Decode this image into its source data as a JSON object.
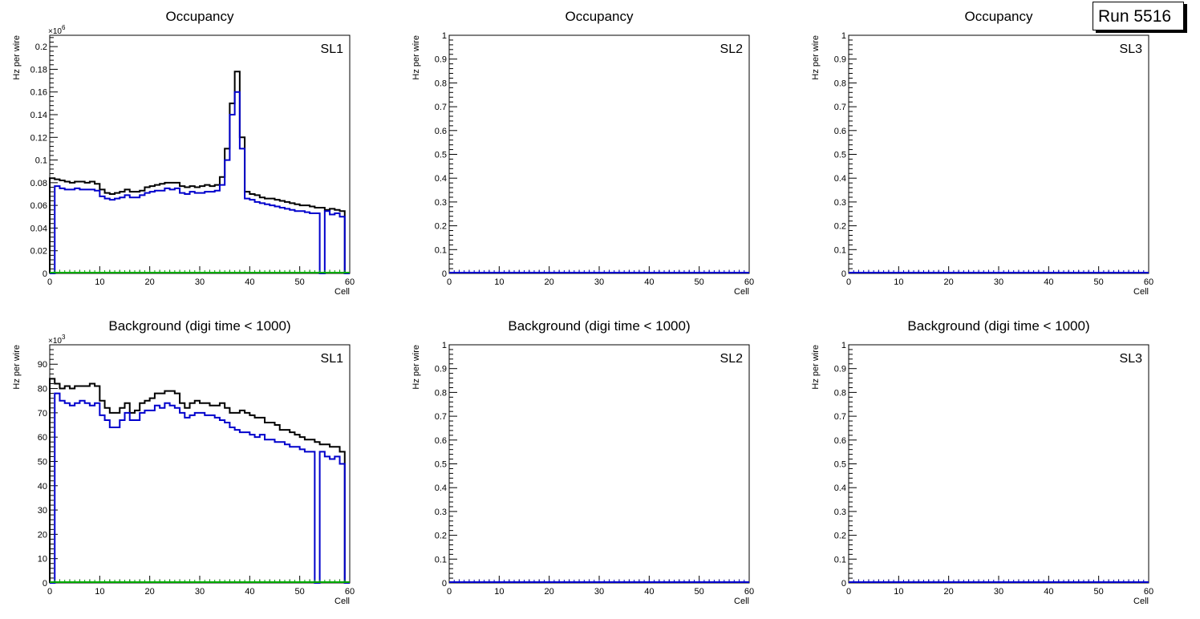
{
  "run_label": "Run 5516",
  "colors": {
    "total": "#000000",
    "stacked": "#0000cc",
    "zero": "#00aa00",
    "frame": "#000000"
  },
  "chart_data": [
    {
      "type": "line",
      "title": "Occupancy",
      "label": "SL1",
      "xlabel": "Cell",
      "ylabel": "Hz per wire",
      "multiplier": "×10^6",
      "xlim": [
        0,
        60
      ],
      "ylim": [
        0,
        0.21
      ],
      "xticks": [
        0,
        10,
        20,
        30,
        40,
        50,
        60
      ],
      "yticks": [
        0,
        0.02,
        0.04,
        0.06,
        0.08,
        0.1,
        0.12,
        0.14,
        0.16,
        0.18,
        0.2
      ],
      "series": [
        {
          "values": [
            0.084,
            0.083,
            0.082,
            0.081,
            0.08,
            0.081,
            0.081,
            0.08,
            0.081,
            0.079,
            0.074,
            0.071,
            0.07,
            0.071,
            0.072,
            0.074,
            0.072,
            0.072,
            0.073,
            0.076,
            0.077,
            0.078,
            0.079,
            0.08,
            0.08,
            0.08,
            0.077,
            0.076,
            0.077,
            0.076,
            0.077,
            0.078,
            0.077,
            0.078,
            0.085,
            0.11,
            0.15,
            0.178,
            0.12,
            0.072,
            0.07,
            0.069,
            0.067,
            0.066,
            0.066,
            0.065,
            0.064,
            0.063,
            0.062,
            0.061,
            0.06,
            0.06,
            0.059,
            0.058,
            0.058,
            0.056,
            0.057,
            0.056,
            0.055,
            0.0
          ]
        },
        {
          "values": [
            0.0,
            0.077,
            0.075,
            0.074,
            0.074,
            0.075,
            0.074,
            0.074,
            0.074,
            0.073,
            0.068,
            0.066,
            0.065,
            0.066,
            0.067,
            0.069,
            0.067,
            0.067,
            0.069,
            0.071,
            0.072,
            0.073,
            0.073,
            0.075,
            0.074,
            0.075,
            0.071,
            0.07,
            0.072,
            0.071,
            0.071,
            0.072,
            0.072,
            0.073,
            0.078,
            0.1,
            0.14,
            0.16,
            0.11,
            0.066,
            0.065,
            0.063,
            0.062,
            0.061,
            0.06,
            0.059,
            0.058,
            0.057,
            0.056,
            0.055,
            0.055,
            0.054,
            0.053,
            0.053,
            0.0,
            0.055,
            0.052,
            0.053,
            0.05,
            0.0
          ]
        }
      ]
    },
    {
      "type": "line",
      "title": "Occupancy",
      "label": "SL2",
      "xlabel": "Cell",
      "ylabel": "Hz per wire",
      "xlim": [
        0,
        60
      ],
      "ylim": [
        0,
        1
      ],
      "xticks": [
        0,
        10,
        20,
        30,
        40,
        50,
        60
      ],
      "yticks": [
        0,
        0.1,
        0.2,
        0.3,
        0.4,
        0.5,
        0.6,
        0.7,
        0.8,
        0.9,
        1
      ],
      "series": []
    },
    {
      "type": "line",
      "title": "Occupancy",
      "label": "SL3",
      "xlabel": "Cell",
      "ylabel": "Hz per wire",
      "xlim": [
        0,
        60
      ],
      "ylim": [
        0,
        1
      ],
      "xticks": [
        0,
        10,
        20,
        30,
        40,
        50,
        60
      ],
      "yticks": [
        0,
        0.1,
        0.2,
        0.3,
        0.4,
        0.5,
        0.6,
        0.7,
        0.8,
        0.9,
        1
      ],
      "series": []
    },
    {
      "type": "line",
      "title": "Background (digi time < 1000)",
      "label": "SL1",
      "xlabel": "Cell",
      "ylabel": "Hz per wire",
      "multiplier": "×10^3",
      "xlim": [
        0,
        60
      ],
      "ylim": [
        0,
        98
      ],
      "xticks": [
        0,
        10,
        20,
        30,
        40,
        50,
        60
      ],
      "yticks": [
        0,
        10,
        20,
        30,
        40,
        50,
        60,
        70,
        80,
        90
      ],
      "series": [
        {
          "values": [
            84,
            82,
            80,
            81,
            80,
            81,
            81,
            81,
            82,
            81,
            75,
            72,
            70,
            70,
            72,
            74,
            70,
            71,
            74,
            75,
            76,
            78,
            78,
            79,
            79,
            78,
            74,
            72,
            74,
            75,
            74,
            74,
            73,
            73,
            74,
            72,
            70,
            70,
            71,
            70,
            69,
            68,
            68,
            66,
            66,
            65,
            63,
            63,
            62,
            61,
            60,
            59,
            59,
            58,
            57,
            57,
            56,
            56,
            54,
            0
          ]
        },
        {
          "values": [
            0,
            78,
            75,
            74,
            73,
            74,
            75,
            74,
            73,
            74,
            69,
            67,
            64,
            64,
            67,
            70,
            67,
            67,
            70,
            71,
            71,
            73,
            72,
            74,
            73,
            72,
            70,
            68,
            69,
            70,
            70,
            69,
            69,
            68,
            67,
            66,
            64,
            63,
            62,
            62,
            61,
            60,
            61,
            59,
            59,
            58,
            58,
            57,
            56,
            56,
            55,
            54,
            54,
            0,
            54,
            52,
            51,
            52,
            49,
            0
          ]
        }
      ]
    },
    {
      "type": "line",
      "title": "Background (digi time < 1000)",
      "label": "SL2",
      "xlabel": "Cell",
      "ylabel": "Hz per wire",
      "xlim": [
        0,
        60
      ],
      "ylim": [
        0,
        1
      ],
      "xticks": [
        0,
        10,
        20,
        30,
        40,
        50,
        60
      ],
      "yticks": [
        0,
        0.1,
        0.2,
        0.3,
        0.4,
        0.5,
        0.6,
        0.7,
        0.8,
        0.9,
        1
      ],
      "series": []
    },
    {
      "type": "line",
      "title": "Background (digi time < 1000)",
      "label": "SL3",
      "xlabel": "Cell",
      "ylabel": "Hz per wire",
      "xlim": [
        0,
        60
      ],
      "ylim": [
        0,
        1
      ],
      "xticks": [
        0,
        10,
        20,
        30,
        40,
        50,
        60
      ],
      "yticks": [
        0,
        0.1,
        0.2,
        0.3,
        0.4,
        0.5,
        0.6,
        0.7,
        0.8,
        0.9,
        1
      ],
      "series": []
    }
  ]
}
